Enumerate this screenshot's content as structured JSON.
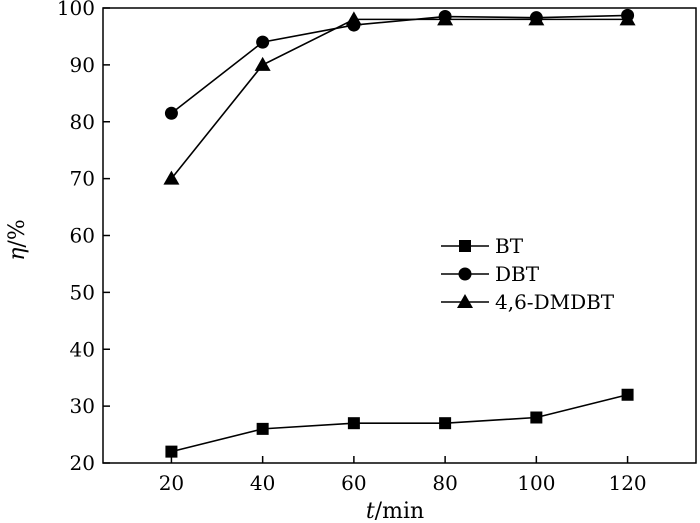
{
  "chart_data": {
    "type": "line",
    "x": [
      20,
      40,
      60,
      80,
      100,
      120
    ],
    "xlim": [
      5,
      135
    ],
    "ylim": [
      20,
      100
    ],
    "xticks": [
      "20",
      "40",
      "60",
      "80",
      "100",
      "120"
    ],
    "yticks": [
      "20",
      "30",
      "40",
      "50",
      "60",
      "70",
      "80",
      "90",
      "100"
    ],
    "xlabel_var": "t",
    "xlabel_unit": "/min",
    "ylabel_var": "η",
    "ylabel_unit": "/%",
    "grid": false,
    "legend_position": "center-right",
    "series": [
      {
        "name": "BT",
        "marker": "square",
        "values": [
          22,
          26,
          27,
          27,
          28,
          32
        ]
      },
      {
        "name": "DBT",
        "marker": "circle",
        "values": [
          81.5,
          94,
          97,
          98.5,
          98.3,
          98.7
        ]
      },
      {
        "name": "4,6-DMDBT",
        "marker": "triangle",
        "values": [
          70,
          90,
          98,
          98,
          98,
          98
        ]
      }
    ]
  }
}
